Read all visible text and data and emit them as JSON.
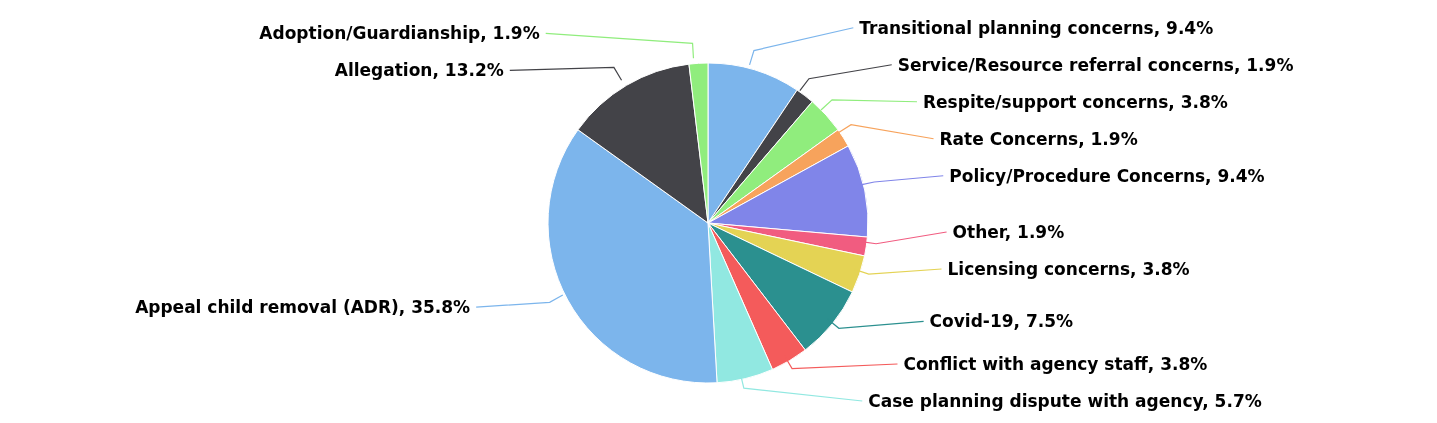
{
  "chart_data": {
    "type": "pie",
    "categories": [
      "Transitional planning concerns",
      "Service/Resource referral concerns",
      "Respite/support concerns",
      "Rate Concerns",
      "Policy/Procedure Concerns",
      "Other",
      "Licensing concerns",
      "Covid-19",
      "Conflict with agency staff",
      "Case planning dispute with agency",
      "Appeal child removal (ADR)",
      "Allegation",
      "Adoption/Guardianship"
    ],
    "values": [
      9.4,
      1.9,
      3.8,
      1.9,
      9.4,
      1.9,
      3.8,
      7.5,
      3.8,
      5.7,
      35.8,
      13.2,
      1.9
    ],
    "value_labels": [
      "9.4%",
      "1.9%",
      "3.8%",
      "1.9%",
      "9.4%",
      "1.9%",
      "3.8%",
      "7.5%",
      "3.8%",
      "5.7%",
      "35.8%",
      "13.2%",
      "1.9%"
    ],
    "colors": [
      "#7cb5ec",
      "#434348",
      "#90ed7d",
      "#f7a35c",
      "#8085e9",
      "#f15c80",
      "#e4d354",
      "#2b908f",
      "#f45b5b",
      "#91e8e1",
      "#7cb5ec",
      "#434348",
      "#90ed7d"
    ],
    "legend": false
  }
}
